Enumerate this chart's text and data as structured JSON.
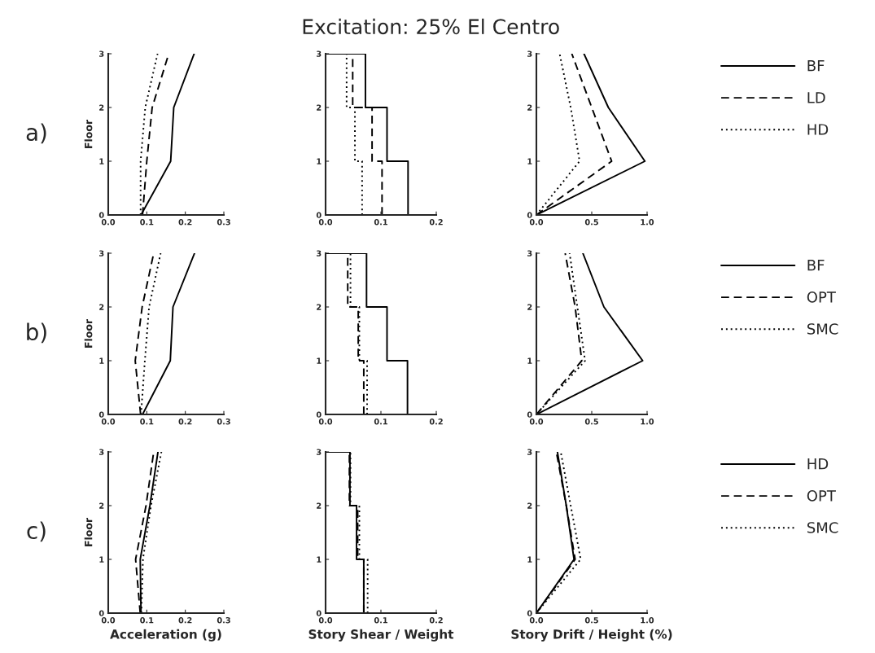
{
  "chart_data": [
    {
      "type": "line",
      "ylabel": "Floor",
      "annotations": [
        "a)"
      ],
      "xlim": [
        0,
        0.3
      ],
      "xticks": [
        {
          "value": 0,
          "label": "0.0"
        },
        0.1,
        0.2,
        {
          "value": 0.3,
          "label": "0.3"
        }
      ],
      "ylim": [
        0,
        3
      ],
      "yticks": [
        0,
        1,
        2,
        3
      ],
      "series": [
        {
          "color": "#000000",
          "line_style": "solid",
          "x": [
            0.085,
            0.162,
            0.17,
            0.223
          ],
          "values": [
            0,
            1,
            2,
            3
          ]
        },
        {
          "color": "#000000",
          "line_style": "dashed",
          "x": [
            0.089,
            0.1,
            0.114,
            0.157
          ],
          "values": [
            0,
            1,
            2,
            3
          ]
        },
        {
          "color": "#000000",
          "line_style": "dotted",
          "x": [
            0.084,
            0.084,
            0.096,
            0.128
          ],
          "values": [
            0,
            1,
            2,
            3
          ]
        }
      ]
    },
    {
      "type": "line",
      "title": "Excitation: 25% El Centro",
      "xlim": [
        0,
        0.2
      ],
      "xticks": [
        {
          "value": 0,
          "label": "0.0"
        },
        0.1,
        0.2
      ],
      "ylim": [
        0,
        3
      ],
      "yticks": [
        0,
        1,
        2,
        3
      ],
      "series": [
        {
          "color": "#000000",
          "line_style": "solid",
          "x": [
            0.149,
            0.149,
            0.111,
            0.111,
            0.072,
            0.072,
            0
          ],
          "values": [
            0,
            1,
            1,
            2,
            2,
            3,
            3
          ]
        },
        {
          "color": "#000000",
          "line_style": "dashed",
          "x": [
            0.102,
            0.102,
            0.084,
            0.084,
            0.049,
            0.049,
            0
          ],
          "values": [
            0,
            1,
            1,
            2,
            2,
            3,
            3
          ]
        },
        {
          "color": "#000000",
          "line_style": "dotted",
          "x": [
            0.066,
            0.066,
            0.053,
            0.053,
            0.038,
            0.038,
            0
          ],
          "values": [
            0,
            1,
            1,
            2,
            2,
            3,
            3
          ]
        }
      ]
    },
    {
      "type": "line",
      "legend": "right",
      "xlim": [
        0,
        1.0
      ],
      "xticks": [
        {
          "value": 0,
          "label": "0.0"
        },
        0.5,
        {
          "value": 1.0,
          "label": "1.0"
        }
      ],
      "ylim": [
        0,
        3
      ],
      "yticks": [
        0,
        1,
        2,
        3
      ],
      "series": [
        {
          "name": "BF",
          "color": "#000000",
          "line_style": "solid",
          "x": [
            0,
            0.98,
            0.65,
            0.43
          ],
          "values": [
            0,
            1,
            2,
            3
          ]
        },
        {
          "name": "LD",
          "color": "#000000",
          "line_style": "dashed",
          "x": [
            0,
            0.68,
            0.5,
            0.32
          ],
          "values": [
            0,
            1,
            2,
            3
          ]
        },
        {
          "name": "HD",
          "color": "#000000",
          "line_style": "dotted",
          "x": [
            0,
            0.39,
            0.31,
            0.21
          ],
          "values": [
            0,
            1,
            2,
            3
          ]
        }
      ]
    },
    {
      "type": "line",
      "ylabel": "Floor",
      "annotations": [
        "b)"
      ],
      "xlim": [
        0,
        0.3
      ],
      "xticks": [
        {
          "value": 0,
          "label": "0.0"
        },
        0.1,
        0.2,
        {
          "value": 0.3,
          "label": "0.3"
        }
      ],
      "ylim": [
        0,
        3
      ],
      "yticks": [
        0,
        1,
        2,
        3
      ],
      "series": [
        {
          "color": "#000000",
          "line_style": "solid",
          "x": [
            0.089,
            0.161,
            0.168,
            0.224
          ],
          "values": [
            0,
            1,
            2,
            3
          ]
        },
        {
          "color": "#000000",
          "line_style": "dashed",
          "x": [
            0.084,
            0.07,
            0.088,
            0.118
          ],
          "values": [
            0,
            1,
            2,
            3
          ]
        },
        {
          "color": "#000000",
          "line_style": "dotted",
          "x": [
            0.085,
            0.095,
            0.106,
            0.136
          ],
          "values": [
            0,
            1,
            2,
            3
          ]
        }
      ]
    },
    {
      "type": "line",
      "xlim": [
        0,
        0.2
      ],
      "xticks": [
        {
          "value": 0,
          "label": "0.0"
        },
        0.1,
        0.2
      ],
      "ylim": [
        0,
        3
      ],
      "yticks": [
        0,
        1,
        2,
        3
      ],
      "series": [
        {
          "color": "#000000",
          "line_style": "solid",
          "x": [
            0.148,
            0.148,
            0.111,
            0.111,
            0.074,
            0.074,
            0
          ],
          "values": [
            0,
            1,
            1,
            2,
            2,
            3,
            3
          ]
        },
        {
          "color": "#000000",
          "line_style": "dashed",
          "x": [
            0.069,
            0.069,
            0.059,
            0.059,
            0.04,
            0.04,
            0
          ],
          "values": [
            0,
            1,
            1,
            2,
            2,
            3,
            3
          ]
        },
        {
          "color": "#000000",
          "line_style": "dotted",
          "x": [
            0.075,
            0.075,
            0.061,
            0.061,
            0.045,
            0.045,
            0
          ],
          "values": [
            0,
            1,
            1,
            2,
            2,
            3,
            3
          ]
        }
      ]
    },
    {
      "type": "line",
      "legend": "right",
      "xlim": [
        0,
        1.0
      ],
      "xticks": [
        {
          "value": 0,
          "label": "0.0"
        },
        0.5,
        {
          "value": 1.0,
          "label": "1.0"
        }
      ],
      "ylim": [
        0,
        3
      ],
      "yticks": [
        0,
        1,
        2,
        3
      ],
      "series": [
        {
          "name": "BF",
          "color": "#000000",
          "line_style": "solid",
          "x": [
            0,
            0.96,
            0.61,
            0.42
          ],
          "values": [
            0,
            1,
            2,
            3
          ]
        },
        {
          "name": "OPT",
          "color": "#000000",
          "line_style": "dashed",
          "x": [
            0,
            0.41,
            0.35,
            0.26
          ],
          "values": [
            0,
            1,
            2,
            3
          ]
        },
        {
          "name": "SMC",
          "color": "#000000",
          "line_style": "dotted",
          "x": [
            0,
            0.44,
            0.37,
            0.3
          ],
          "values": [
            0,
            1,
            2,
            3
          ]
        }
      ]
    },
    {
      "type": "line",
      "ylabel": "Floor",
      "xlabel": "Acceleration (g)",
      "annotations": [
        "c)"
      ],
      "xlim": [
        0,
        0.3
      ],
      "xticks": [
        {
          "value": 0,
          "label": "0.0"
        },
        0.1,
        0.2,
        {
          "value": 0.3,
          "label": "0.3"
        }
      ],
      "ylim": [
        0,
        3
      ],
      "yticks": [
        0,
        1,
        2,
        3
      ],
      "series": [
        {
          "color": "#000000",
          "line_style": "solid",
          "x": [
            0.085,
            0.083,
            0.108,
            0.129
          ],
          "values": [
            0,
            1,
            2,
            3
          ]
        },
        {
          "color": "#000000",
          "line_style": "dashed",
          "x": [
            0.083,
            0.071,
            0.098,
            0.118
          ],
          "values": [
            0,
            1,
            2,
            3
          ]
        },
        {
          "color": "#000000",
          "line_style": "dotted",
          "x": [
            0.086,
            0.09,
            0.111,
            0.138
          ],
          "values": [
            0,
            1,
            2,
            3
          ]
        }
      ]
    },
    {
      "type": "line",
      "xlabel": "Story Shear / Weight",
      "xlim": [
        0,
        0.2
      ],
      "xticks": [
        {
          "value": 0,
          "label": "0.0"
        },
        0.1,
        0.2
      ],
      "ylim": [
        0,
        3
      ],
      "yticks": [
        0,
        1,
        2,
        3
      ],
      "series": [
        {
          "color": "#000000",
          "line_style": "solid",
          "x": [
            0.069,
            0.069,
            0.056,
            0.056,
            0.044,
            0.044,
            0
          ],
          "values": [
            0,
            1,
            1,
            2,
            2,
            3,
            3
          ]
        },
        {
          "color": "#000000",
          "line_style": "dashed",
          "x": [
            0.069,
            0.069,
            0.058,
            0.058,
            0.043,
            0.043,
            0
          ],
          "values": [
            0,
            1,
            1,
            2,
            2,
            3,
            3
          ]
        },
        {
          "color": "#000000",
          "line_style": "dotted",
          "x": [
            0.076,
            0.076,
            0.061,
            0.061,
            0.045,
            0.045,
            0
          ],
          "values": [
            0,
            1,
            1,
            2,
            2,
            3,
            3
          ]
        }
      ]
    },
    {
      "type": "line",
      "legend": "right",
      "xlabel": "Story Drift / Height (%)",
      "xlim": [
        0,
        1.0
      ],
      "xticks": [
        {
          "value": 0,
          "label": "0.0"
        },
        0.5,
        {
          "value": 1.0,
          "label": "1.0"
        }
      ],
      "ylim": [
        0,
        3
      ],
      "yticks": [
        0,
        1,
        2,
        3
      ],
      "series": [
        {
          "name": "HD",
          "color": "#000000",
          "line_style": "solid",
          "x": [
            0,
            0.34,
            0.27,
            0.19
          ],
          "values": [
            0,
            1,
            2,
            3
          ]
        },
        {
          "name": "OPT",
          "color": "#000000",
          "line_style": "dashed",
          "x": [
            0,
            0.35,
            0.27,
            0.18
          ],
          "values": [
            0,
            1,
            2,
            3
          ]
        },
        {
          "name": "SMC",
          "color": "#000000",
          "line_style": "dotted",
          "x": [
            0,
            0.4,
            0.31,
            0.22
          ],
          "values": [
            0,
            1,
            2,
            3
          ]
        }
      ]
    }
  ]
}
